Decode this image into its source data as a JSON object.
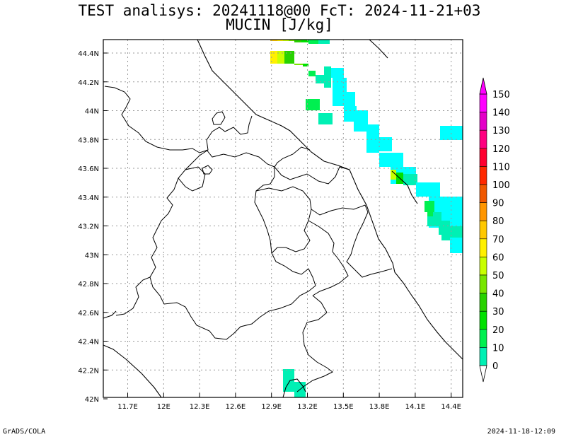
{
  "title": {
    "line1": "TEST analisys: 20241118@00 FcT: 2024-11-21+03",
    "line2": "MUCIN [J/kg]"
  },
  "axes": {
    "x_ticks": [
      "11.7E",
      "12E",
      "12.3E",
      "12.6E",
      "12.9E",
      "13.2E",
      "13.5E",
      "13.8E",
      "14.1E",
      "14.4E"
    ],
    "y_ticks": [
      "44.4N",
      "44.2N",
      "44N",
      "43.8N",
      "43.6N",
      "43.4N",
      "43.2N",
      "43N",
      "42.8N",
      "42.6N",
      "42.4N",
      "42.2N",
      "42N"
    ]
  },
  "colorbar": {
    "labels": [
      "150",
      "140",
      "130",
      "120",
      "110",
      "100",
      "90",
      "80",
      "70",
      "60",
      "50",
      "40",
      "30",
      "20",
      "10",
      "0"
    ],
    "colors": [
      "#ff00ff",
      "#e400c8",
      "#ff0080",
      "#ff0030",
      "#ff2800",
      "#f05800",
      "#ff9600",
      "#ffc800",
      "#fff000",
      "#c8ff00",
      "#78e600",
      "#28d200",
      "#00e100",
      "#00f050",
      "#00f0b4",
      "#00ffff"
    ]
  },
  "field": {
    "variable": "MUCIN",
    "units": "J/kg",
    "notes": "shaded MUCIN field along the Adriatic coast"
  },
  "footer": {
    "left": "GrADS/COLA",
    "right": "2024-11-18-12:09"
  }
}
